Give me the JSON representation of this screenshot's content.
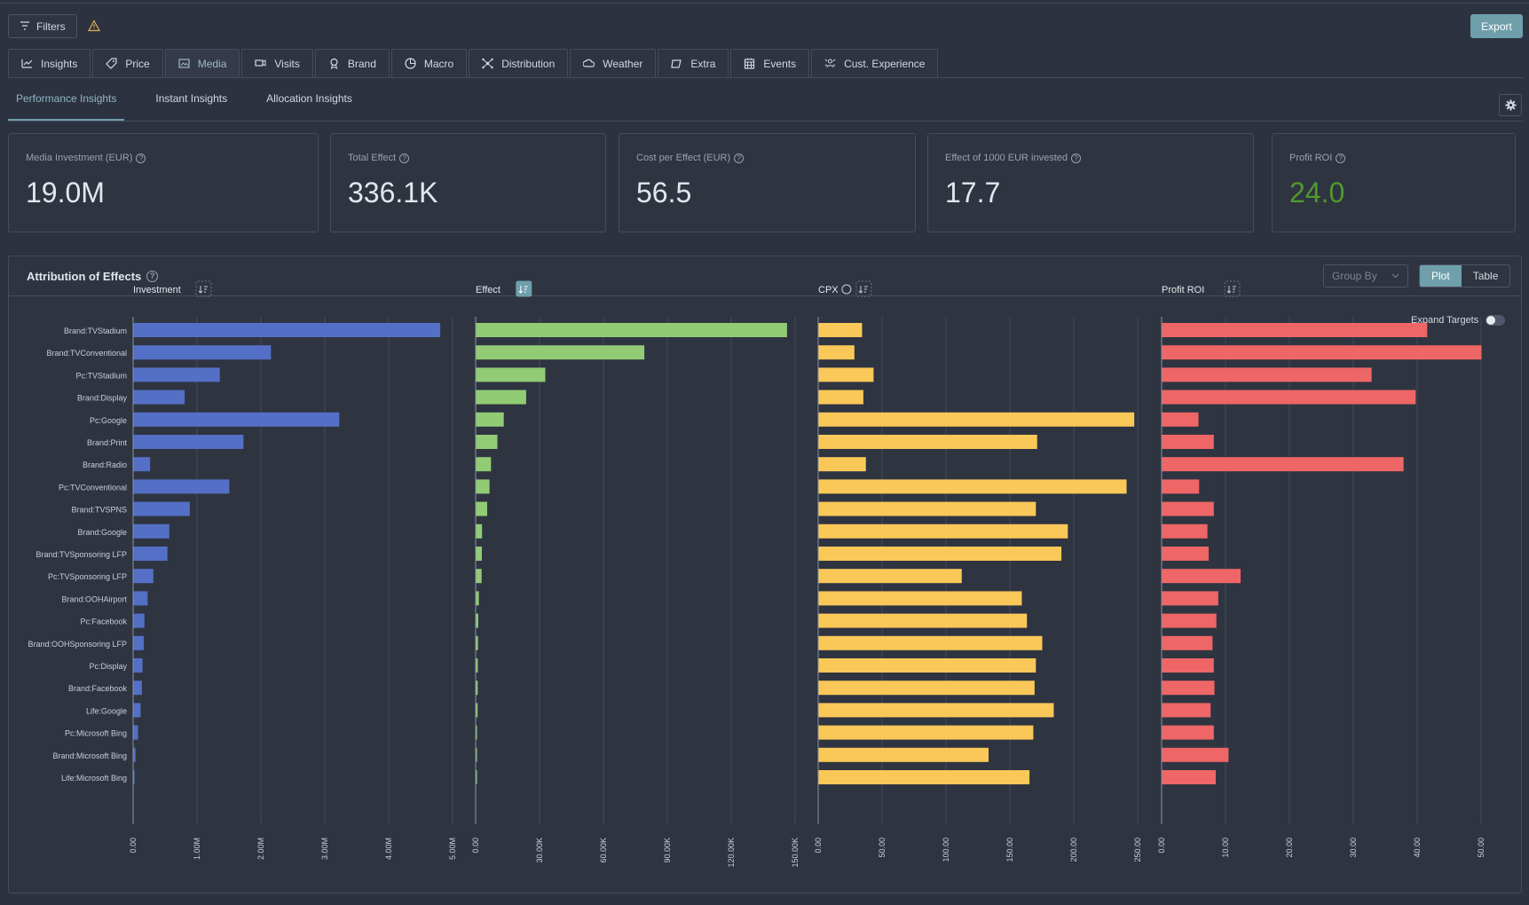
{
  "toolbar": {
    "filters_label": "Filters",
    "export_label": "Export"
  },
  "tabs": [
    {
      "label": "Insights",
      "icon": "line-chart-icon"
    },
    {
      "label": "Price",
      "icon": "price-tag-icon"
    },
    {
      "label": "Media",
      "icon": "media-icon",
      "active": true
    },
    {
      "label": "Visits",
      "icon": "visits-icon"
    },
    {
      "label": "Brand",
      "icon": "brand-icon"
    },
    {
      "label": "Macro",
      "icon": "macro-icon"
    },
    {
      "label": "Distribution",
      "icon": "distribution-icon"
    },
    {
      "label": "Weather",
      "icon": "weather-icon"
    },
    {
      "label": "Extra",
      "icon": "extra-icon"
    },
    {
      "label": "Events",
      "icon": "calendar-icon"
    },
    {
      "label": "Cust. Experience",
      "icon": "customer-icon"
    }
  ],
  "subtabs": [
    "Performance Insights",
    "Instant Insights",
    "Allocation Insights"
  ],
  "kpis": [
    {
      "label": "Media Investment (EUR)",
      "value": "19.0M"
    },
    {
      "label": "Total Effect",
      "value": "336.1K"
    },
    {
      "label": "Cost per Effect (EUR)",
      "value": "56.5"
    },
    {
      "label": "Effect of 1000 EUR invested",
      "value": "17.7"
    },
    {
      "label": "Profit ROI",
      "value": "24.0"
    }
  ],
  "panel": {
    "title": "Attribution of Effects",
    "group_by_placeholder": "Group By",
    "plot_label": "Plot",
    "table_label": "Table",
    "expand_targets_label": "Expand Targets"
  },
  "colors": {
    "investment": "#5470c6",
    "effect": "#91cc75",
    "cpx": "#fac858",
    "roi": "#ee6666",
    "accent": "#6f9fab"
  },
  "chart_data": {
    "type": "bar",
    "orientation": "horizontal",
    "categories": [
      "Brand:TVStadium",
      "Brand:TVConventional",
      "Pc:TVStadium",
      "Brand:Display",
      "Pc:Google",
      "Brand:Print",
      "Brand:Radio",
      "Pc:TVConventional",
      "Brand:TVSPNS",
      "Brand:Google",
      "Brand:TVSponsoring LFP",
      "Pc:TVSponsoring LFP",
      "Brand:OOHAirport",
      "Pc:Facebook",
      "Brand:OOHSponsoring LFP",
      "Pc:Display",
      "Brand:Facebook",
      "Life:Google",
      "Pc:Microsoft Bing",
      "Brand:Microsoft Bing",
      "Life:Microsoft Bing"
    ],
    "panels": [
      {
        "name": "Investment",
        "values": [
          4800000,
          2150000,
          1350000,
          800000,
          3220000,
          1720000,
          260000,
          1500000,
          880000,
          560000,
          530000,
          310000,
          220000,
          170000,
          160000,
          140000,
          130000,
          110000,
          70000,
          30000,
          15000
        ],
        "xlim": [
          0,
          5000000
        ],
        "ticks": [
          "0.00",
          "1.00M",
          "2.00M",
          "3.00M",
          "4.00M",
          "5.00M"
        ]
      },
      {
        "name": "Effect",
        "values": [
          146000,
          79000,
          32500,
          23500,
          13000,
          10000,
          7000,
          6300,
          5200,
          2800,
          2700,
          2600,
          1300,
          1000,
          900,
          800,
          750,
          700,
          400,
          150,
          80
        ],
        "xlim": [
          0,
          150000
        ],
        "ticks": [
          "0.00",
          "30.00K",
          "60.00K",
          "90.00K",
          "120.00K",
          "150.00K"
        ]
      },
      {
        "name": "CPX",
        "values": [
          34,
          28,
          43,
          35,
          247,
          171,
          37,
          241,
          170,
          195,
          190,
          112,
          159,
          163,
          175,
          170,
          169,
          184,
          168,
          133,
          165
        ],
        "xlim": [
          0,
          250
        ],
        "ticks": [
          "0.00",
          "50.00",
          "100.00",
          "150.00",
          "200.00",
          "250.00"
        ]
      },
      {
        "name": "Profit ROI",
        "values": [
          41.5,
          50,
          32.8,
          39.7,
          5.7,
          8.1,
          37.8,
          5.8,
          8.1,
          7.1,
          7.3,
          12.3,
          8.8,
          8.5,
          7.9,
          8.1,
          8.2,
          7.6,
          8.1,
          10.4,
          8.4
        ],
        "xlim": [
          0,
          50
        ],
        "ticks": [
          "0.00",
          "10.00",
          "20.00",
          "30.00",
          "40.00",
          "50.00"
        ]
      }
    ]
  }
}
